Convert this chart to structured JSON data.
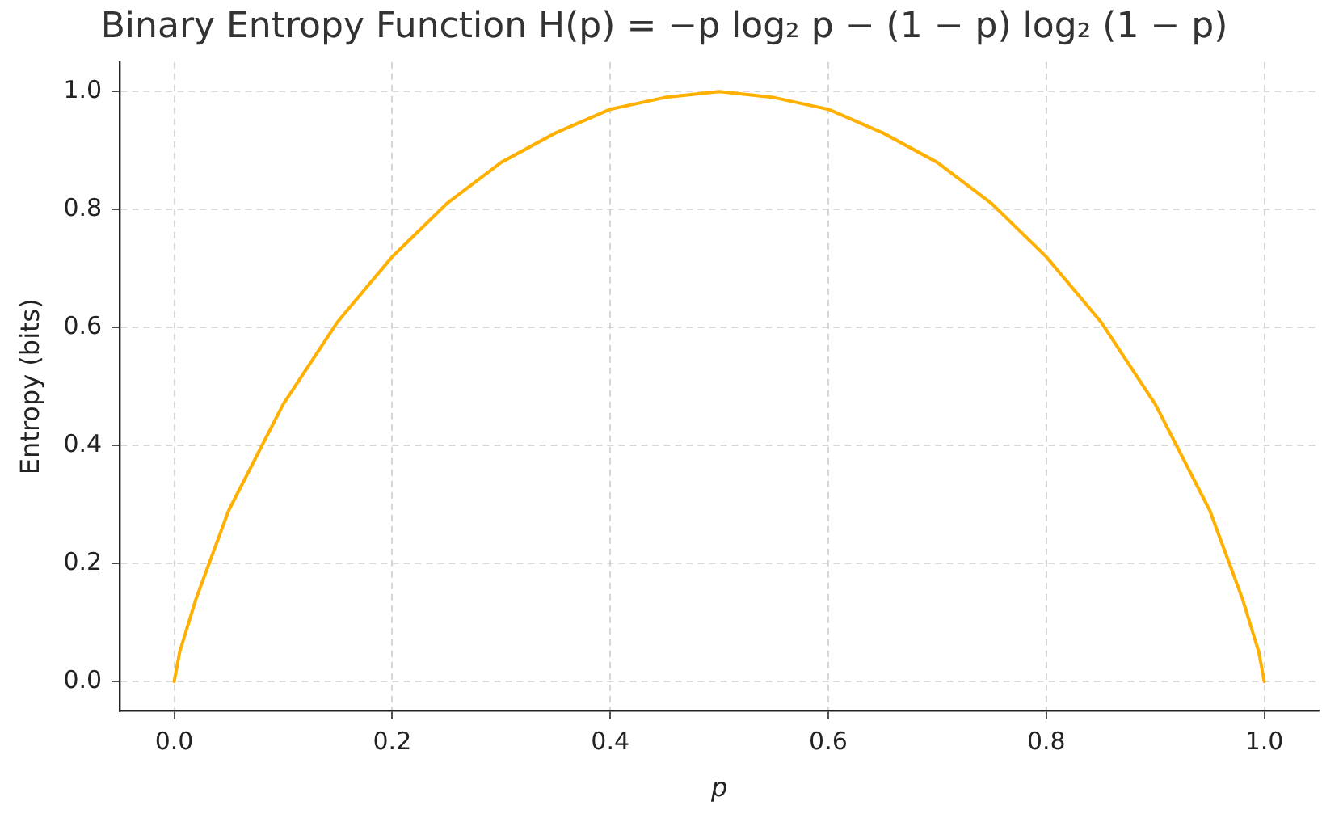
{
  "chart_data": {
    "type": "line",
    "title": "Binary Entropy Function H(p) = −p log₂ p − (1 − p) log₂ (1 − p)",
    "xlabel": "p",
    "ylabel": "Entropy (bits)",
    "x": [
      0,
      0.005,
      0.01,
      0.02,
      0.03,
      0.05,
      0.075,
      0.1,
      0.15,
      0.2,
      0.25,
      0.3,
      0.35,
      0.4,
      0.45,
      0.5,
      0.55,
      0.6,
      0.65,
      0.7,
      0.75,
      0.8,
      0.85,
      0.9,
      0.925,
      0.95,
      0.97,
      0.98,
      0.99,
      0.995,
      1
    ],
    "series": [
      {
        "color": "#ffb000",
        "values": [
          0,
          0.05,
          0.08,
          0.14,
          0.19,
          0.29,
          0.38,
          0.47,
          0.61,
          0.72,
          0.81,
          0.88,
          0.93,
          0.97,
          0.99,
          1.0,
          0.99,
          0.97,
          0.93,
          0.88,
          0.81,
          0.72,
          0.61,
          0.47,
          0.38,
          0.29,
          0.19,
          0.14,
          0.08,
          0.05,
          0
        ]
      }
    ],
    "xlim": [
      -0.05,
      1.05
    ],
    "ylim": [
      -0.05,
      1.05
    ],
    "xticks": [
      {
        "value": 0,
        "label": "0.0"
      },
      {
        "value": 0.2,
        "label": "0.2"
      },
      {
        "value": 0.4,
        "label": "0.4"
      },
      {
        "value": 0.6,
        "label": "0.6"
      },
      {
        "value": 0.8,
        "label": "0.8"
      },
      {
        "value": 1,
        "label": "1.0"
      }
    ],
    "yticks": [
      {
        "value": 0,
        "label": "0.0"
      },
      {
        "value": 0.2,
        "label": "0.2"
      },
      {
        "value": 0.4,
        "label": "0.4"
      },
      {
        "value": 0.6,
        "label": "0.6"
      },
      {
        "value": 0.8,
        "label": "0.8"
      },
      {
        "value": 1,
        "label": "1.0"
      }
    ],
    "grid": true,
    "marker": "none",
    "line_style": "solid"
  }
}
